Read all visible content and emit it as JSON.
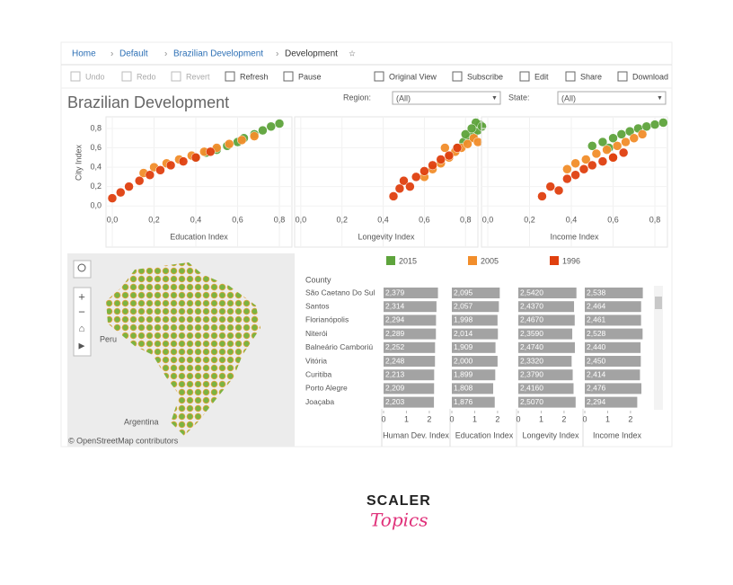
{
  "breadcrumb": [
    "Home",
    "Default",
    "Brazilian Development",
    "Development"
  ],
  "toolbar": [
    "Undo",
    "Redo",
    "Revert",
    "Refresh",
    "Pause",
    "Original View",
    "Subscribe",
    "Edit",
    "Share",
    "Download"
  ],
  "dashboard": {
    "title": "Brazilian Development",
    "filters": [
      {
        "label": "Region:",
        "value": "(All)"
      },
      {
        "label": "State:",
        "value": "(All)"
      }
    ],
    "scatter": {
      "type": "scatter",
      "y_label": "City Index",
      "ylim": [
        -0.1,
        0.92
      ],
      "yticks": [
        {
          "value": 0,
          "label": "0,0"
        },
        {
          "value": 0.2,
          "label": "0,2"
        },
        {
          "value": 0.4,
          "label": "0,4"
        },
        {
          "value": 0.6,
          "label": "0,6"
        },
        {
          "value": 0.8,
          "label": "0,8"
        }
      ],
      "xlim": [
        -0.03,
        0.86
      ],
      "xticks": [
        {
          "value": 0,
          "label": "0,0"
        },
        {
          "value": 0.2,
          "label": "0,2"
        },
        {
          "value": 0.4,
          "label": "0,4"
        },
        {
          "value": 0.6,
          "label": "0,6"
        },
        {
          "value": 0.8,
          "label": "0,8"
        }
      ],
      "legend": [
        {
          "name": "2015",
          "color": "#5ea43c"
        },
        {
          "name": "2005",
          "color": "#f28e2b"
        },
        {
          "name": "1996",
          "color": "#e0400f"
        }
      ],
      "panels": [
        {
          "x_label": "Education Index",
          "series": [
            {
              "x": [
                0.4,
                0.45,
                0.5,
                0.55,
                0.6,
                0.63,
                0.68,
                0.72,
                0.76,
                0.8
              ],
              "y": [
                0.5,
                0.55,
                0.58,
                0.62,
                0.66,
                0.7,
                0.74,
                0.78,
                0.82,
                0.85
              ]
            },
            {
              "x": [
                0.15,
                0.2,
                0.26,
                0.32,
                0.38,
                0.44,
                0.5,
                0.56,
                0.62,
                0.68
              ],
              "y": [
                0.34,
                0.4,
                0.44,
                0.48,
                0.52,
                0.56,
                0.6,
                0.64,
                0.68,
                0.72
              ]
            },
            {
              "x": [
                0.0,
                0.04,
                0.08,
                0.13,
                0.18,
                0.23,
                0.28,
                0.34,
                0.4,
                0.47
              ],
              "y": [
                0.08,
                0.14,
                0.2,
                0.26,
                0.32,
                0.37,
                0.42,
                0.46,
                0.5,
                0.56
              ]
            }
          ]
        },
        {
          "x_label": "Longevity Index",
          "series": [
            {
              "x": [
                0.76,
                0.79,
                0.82,
                0.84,
                0.86,
                0.87,
                0.8,
                0.85,
                0.88,
                0.83
              ],
              "y": [
                0.6,
                0.66,
                0.7,
                0.74,
                0.78,
                0.84,
                0.74,
                0.86,
                0.82,
                0.8
              ]
            },
            {
              "x": [
                0.6,
                0.64,
                0.68,
                0.72,
                0.75,
                0.78,
                0.81,
                0.84,
                0.7,
                0.86
              ],
              "y": [
                0.3,
                0.38,
                0.44,
                0.5,
                0.56,
                0.6,
                0.64,
                0.7,
                0.6,
                0.66
              ]
            },
            {
              "x": [
                0.45,
                0.48,
                0.5,
                0.53,
                0.56,
                0.6,
                0.64,
                0.68,
                0.72,
                0.76
              ],
              "y": [
                0.1,
                0.18,
                0.26,
                0.2,
                0.3,
                0.36,
                0.42,
                0.48,
                0.52,
                0.6
              ]
            }
          ]
        },
        {
          "x_label": "Income Index",
          "series": [
            {
              "x": [
                0.5,
                0.55,
                0.6,
                0.64,
                0.68,
                0.72,
                0.76,
                0.8,
                0.84,
                0.58
              ],
              "y": [
                0.62,
                0.66,
                0.7,
                0.74,
                0.77,
                0.8,
                0.82,
                0.84,
                0.86,
                0.6
              ]
            },
            {
              "x": [
                0.38,
                0.42,
                0.47,
                0.52,
                0.57,
                0.62,
                0.66,
                0.7,
                0.74,
                0.6
              ],
              "y": [
                0.38,
                0.44,
                0.48,
                0.54,
                0.58,
                0.62,
                0.66,
                0.7,
                0.74,
                0.5
              ]
            },
            {
              "x": [
                0.26,
                0.3,
                0.34,
                0.38,
                0.42,
                0.46,
                0.5,
                0.55,
                0.6,
                0.65
              ],
              "y": [
                0.1,
                0.2,
                0.16,
                0.28,
                0.32,
                0.38,
                0.42,
                0.46,
                0.5,
                0.55
              ]
            }
          ]
        }
      ]
    },
    "map": {
      "labels": [
        "Peru",
        "Argentina"
      ],
      "attribution": "© OpenStreetMap contributors"
    },
    "table": {
      "row_header": "County",
      "columns": [
        "Human Dev. Index",
        "Education Index",
        "Longevity Index",
        "Income Index"
      ],
      "xticks": [
        0,
        1,
        2
      ],
      "xlim": [
        0,
        2.75
      ],
      "rows": [
        {
          "county": "São Caetano Do Sul",
          "values": [
            {
              "value": 2.379,
              "label": "2,379"
            },
            {
              "value": 2.095,
              "label": "2,095"
            },
            {
              "value": 2.542,
              "label": "2,5420"
            },
            {
              "value": 2.538,
              "label": "2,538"
            }
          ]
        },
        {
          "county": "Santos",
          "values": [
            {
              "value": 2.314,
              "label": "2,314"
            },
            {
              "value": 2.057,
              "label": "2,057"
            },
            {
              "value": 2.437,
              "label": "2,4370"
            },
            {
              "value": 2.464,
              "label": "2,464"
            }
          ]
        },
        {
          "county": "Florianópolis",
          "values": [
            {
              "value": 2.294,
              "label": "2,294"
            },
            {
              "value": 1.998,
              "label": "1,998"
            },
            {
              "value": 2.467,
              "label": "2,4670"
            },
            {
              "value": 2.461,
              "label": "2,461"
            }
          ]
        },
        {
          "county": "Niterói",
          "values": [
            {
              "value": 2.289,
              "label": "2,289"
            },
            {
              "value": 2.014,
              "label": "2,014"
            },
            {
              "value": 2.359,
              "label": "2,3590"
            },
            {
              "value": 2.528,
              "label": "2,528"
            }
          ]
        },
        {
          "county": "Balneário Camboriú",
          "values": [
            {
              "value": 2.252,
              "label": "2,252"
            },
            {
              "value": 1.909,
              "label": "1,909"
            },
            {
              "value": 2.474,
              "label": "2,4740"
            },
            {
              "value": 2.44,
              "label": "2,440"
            }
          ]
        },
        {
          "county": "Vitória",
          "values": [
            {
              "value": 2.248,
              "label": "2,248"
            },
            {
              "value": 2.0,
              "label": "2,000"
            },
            {
              "value": 2.332,
              "label": "2,3320"
            },
            {
              "value": 2.45,
              "label": "2,450"
            }
          ]
        },
        {
          "county": "Curitiba",
          "values": [
            {
              "value": 2.213,
              "label": "2,213"
            },
            {
              "value": 1.899,
              "label": "1,899"
            },
            {
              "value": 2.379,
              "label": "2,3790"
            },
            {
              "value": 2.414,
              "label": "2,414"
            }
          ]
        },
        {
          "county": "Porto Alegre",
          "values": [
            {
              "value": 2.209,
              "label": "2,209"
            },
            {
              "value": 1.808,
              "label": "1,808"
            },
            {
              "value": 2.416,
              "label": "2,4160"
            },
            {
              "value": 2.476,
              "label": "2,476"
            }
          ]
        },
        {
          "county": "Joaçaba",
          "values": [
            {
              "value": 2.203,
              "label": "2,203"
            },
            {
              "value": 1.876,
              "label": "1,876"
            },
            {
              "value": 2.507,
              "label": "2,5070"
            },
            {
              "value": 2.294,
              "label": "2,294"
            }
          ]
        }
      ]
    }
  },
  "logo": {
    "brand": "SCALER",
    "product": "Topics"
  }
}
